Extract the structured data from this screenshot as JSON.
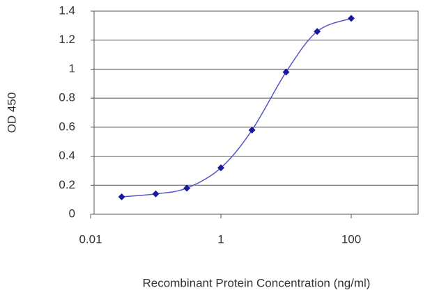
{
  "chart_data": {
    "type": "line",
    "x_label": "Recombinant Protein Concentration (ng/ml)",
    "y_label": "OD 450",
    "x": [
      0.03,
      0.1,
      0.3,
      1,
      3,
      10,
      30,
      100
    ],
    "series": [
      {
        "color": "#1a1a9c",
        "values": [
          0.12,
          0.14,
          0.18,
          0.32,
          0.58,
          0.98,
          1.26,
          1.35
        ]
      }
    ],
    "xlim": [
      0.01,
      1000
    ],
    "xticks": [
      0.01,
      1,
      100
    ],
    "xlog": true,
    "ylim": [
      0,
      1.4
    ],
    "yticks": [
      0,
      0.2,
      0.4,
      0.6,
      0.8,
      1,
      1.2,
      1.4
    ],
    "grid": true
  }
}
